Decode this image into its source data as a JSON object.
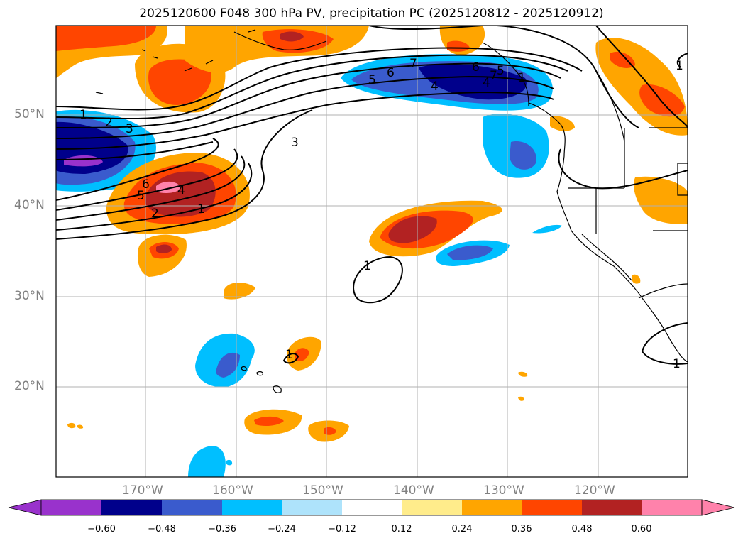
{
  "title": "2025120600 F048 300 hPa PV, precipitation PC (2025120812 - 2025120912)",
  "latitudes": [
    {
      "label": "50°N"
    },
    {
      "label": "40°N"
    },
    {
      "label": "30°N"
    },
    {
      "label": "20°N"
    }
  ],
  "longitudes": [
    {
      "label": "170°W"
    },
    {
      "label": "160°W"
    },
    {
      "label": "150°W"
    },
    {
      "label": "140°W"
    },
    {
      "label": "130°W"
    },
    {
      "label": "120°W"
    }
  ],
  "contour_labels": [
    "1",
    "2",
    "3",
    "4",
    "5",
    "6",
    "7",
    "1",
    "3",
    "4",
    "5",
    "6",
    "7",
    "1",
    "2",
    "4",
    "5",
    "6",
    "1",
    "1",
    "1",
    "1"
  ],
  "colorbar": {
    "ticks": [
      "−0.60",
      "−0.48",
      "−0.36",
      "−0.24",
      "−0.12",
      "0.12",
      "0.24",
      "0.36",
      "0.48",
      "0.60"
    ],
    "colors": [
      "#9932cc",
      "#00008b",
      "#3a5bcd",
      "#00bfff",
      "#aee3fb",
      "#ffffff",
      "#ffec8b",
      "#ffa500",
      "#ff4500",
      "#b22222",
      "#ff82ab"
    ]
  }
}
